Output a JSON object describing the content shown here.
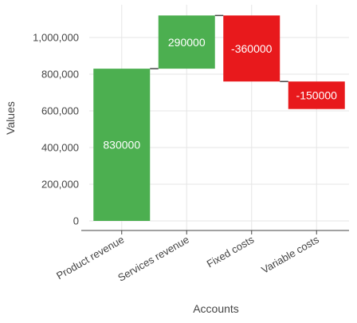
{
  "chart_data": {
    "type": "bar",
    "subtype": "waterfall",
    "title": "",
    "xlabel": "Accounts",
    "ylabel": "Values",
    "categories": [
      "Product revenue",
      "Services revenue",
      "Fixed costs",
      "Variable costs"
    ],
    "values": [
      830000,
      290000,
      -360000,
      -150000
    ],
    "data_labels": [
      "830000",
      "290000",
      "-360000",
      "-150000"
    ],
    "ylim": [
      0,
      1120000
    ],
    "yticks": [
      0,
      200000,
      400000,
      600000,
      800000,
      1000000
    ],
    "ytick_labels": [
      "0",
      "200,000",
      "400,000",
      "600,000",
      "800,000",
      "1,000,000"
    ],
    "grid": true,
    "legend": "none",
    "colors": {
      "increase": "#4caf50",
      "decrease": "#e8191c",
      "connector": "#444444",
      "grid": "#e6e6e6",
      "axis": "#444444",
      "label_text": "#ffffff",
      "tick_text": "#444444"
    }
  }
}
